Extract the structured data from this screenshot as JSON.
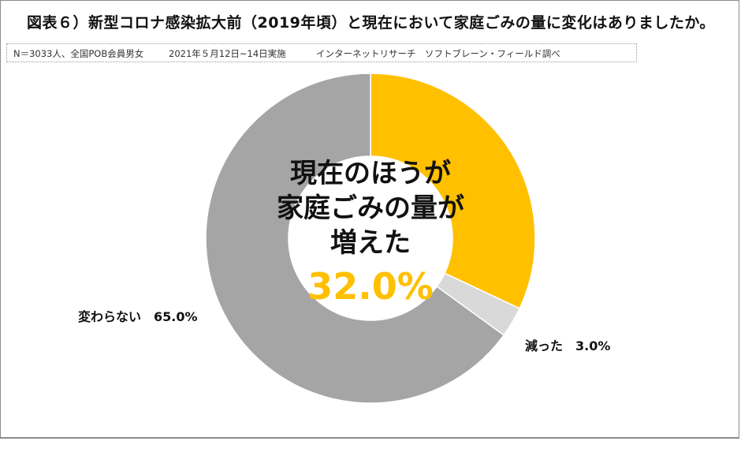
{
  "title": "図表６）新型コロナ感染拡大前（2019年頃）と現在において家庭ごみの量に変化はありましたか。",
  "note": {
    "sample": "N＝3033人、全国POB会員男女",
    "date": "2021年５月12日~14日実施",
    "source": "インターネットリサーチ　ソフトブレーン・フィールド調べ"
  },
  "center": {
    "line1": "現在のほうが",
    "line2": "家庭ごみの量が",
    "line3": "増えた",
    "value": "32.0%"
  },
  "labels": {
    "unchanged": "変わらない　65.0%",
    "decreased": "減った　3.0%"
  },
  "colors": {
    "increased": "#ffc000",
    "decreased": "#d9d9d9",
    "unchanged": "#a5a5a5",
    "accent_text": "#ffc000"
  },
  "chart_data": {
    "type": "pie",
    "subtype": "donut",
    "title": "図表６）新型コロナ感染拡大前（2019年頃）と現在において家庭ごみの量に変化はありましたか。",
    "categories": [
      "現在のほうが家庭ごみの量が増えた",
      "減った",
      "変わらない"
    ],
    "values": [
      32.0,
      3.0,
      65.0
    ],
    "unit": "%",
    "colors": [
      "#ffc000",
      "#d9d9d9",
      "#a5a5a5"
    ],
    "start_angle": "12 o'clock, clockwise",
    "annotations": [
      "N＝3033人、全国POB会員男女",
      "2021年５月12日~14日実施",
      "インターネットリサーチ　ソフトブレーン・フィールド調べ"
    ],
    "legend": "none (data labels)"
  }
}
